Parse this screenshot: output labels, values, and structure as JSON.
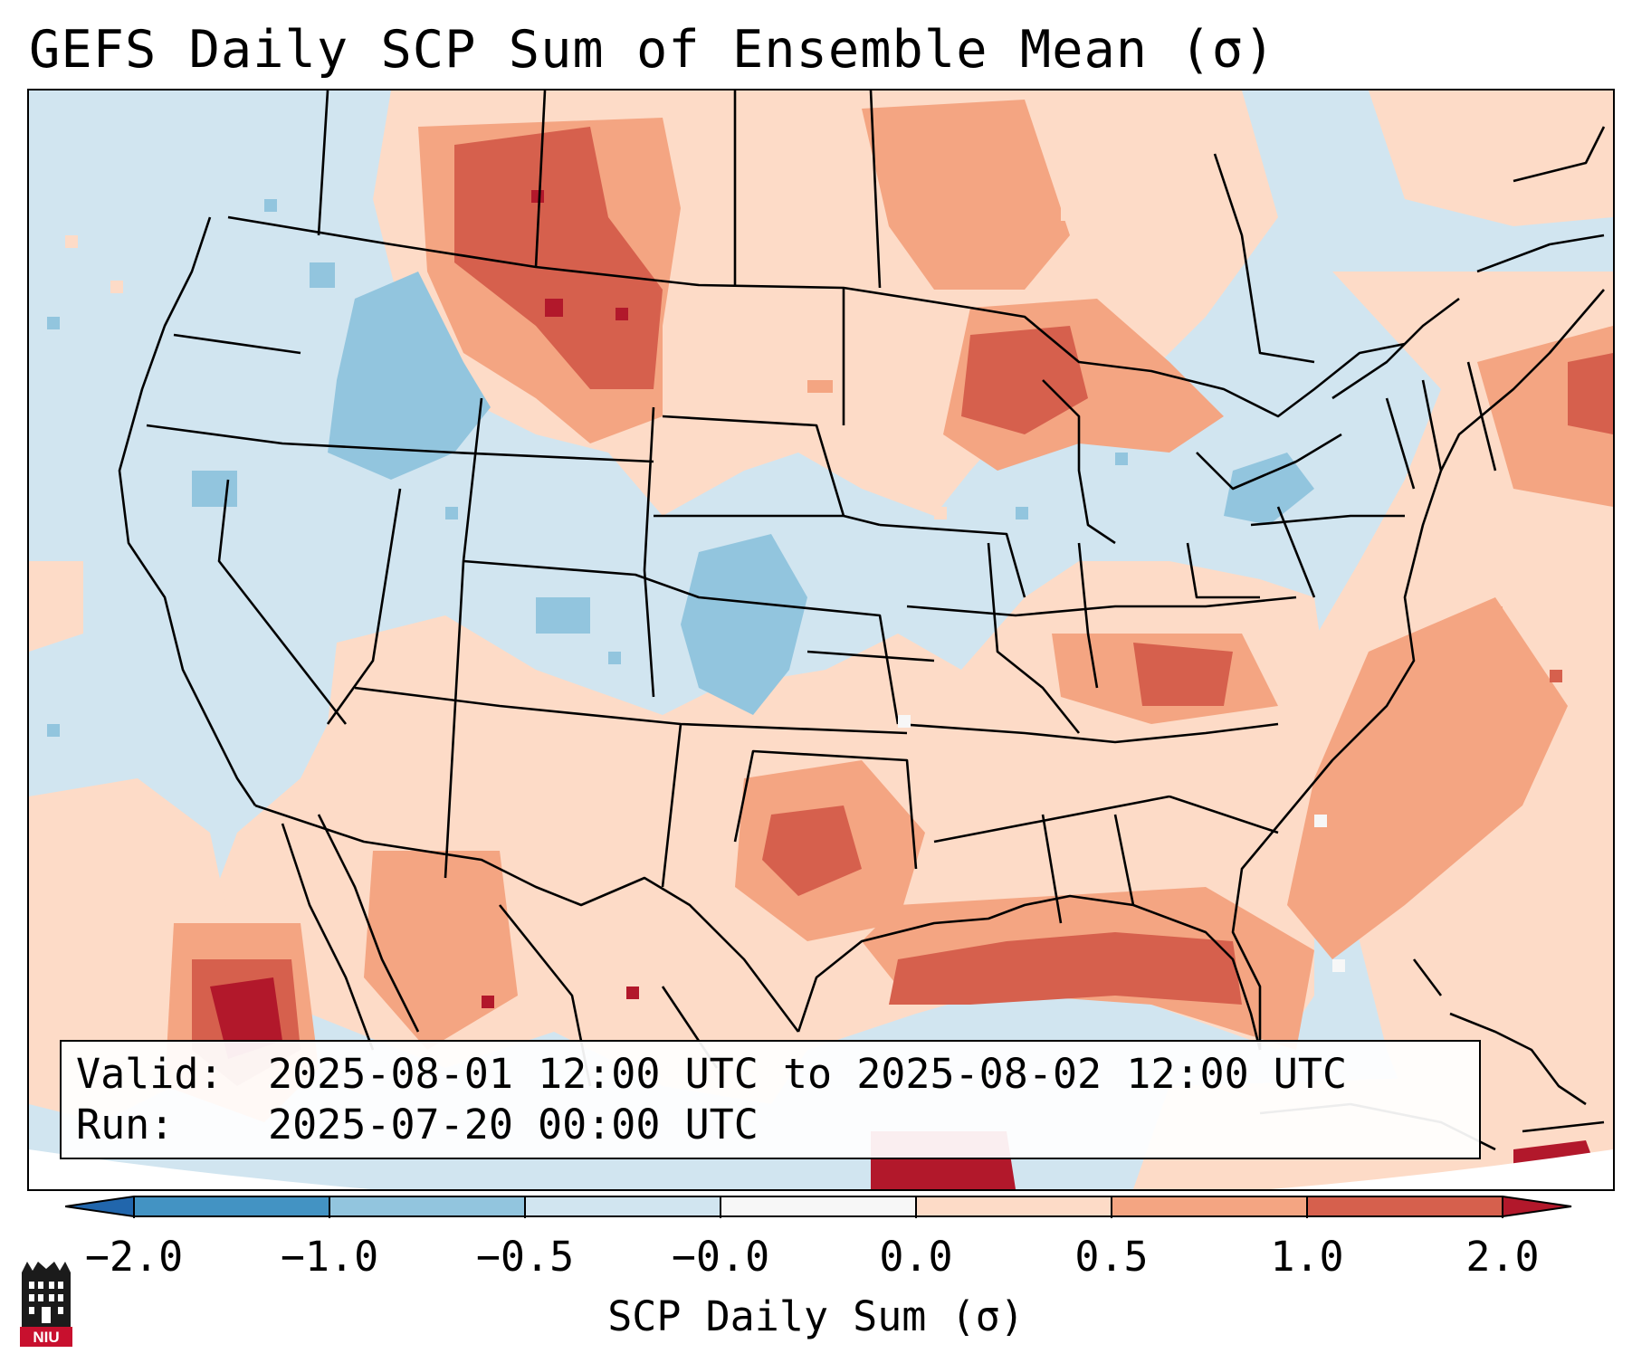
{
  "title": "GEFS Daily SCP Sum of Ensemble Mean (σ)",
  "info": {
    "valid_label": "Valid:",
    "valid_value": "2025-08-01 12:00 UTC to 2025-08-02 12:00 UTC",
    "run_label": "Run:",
    "run_value": "2025-07-20 00:00 UTC"
  },
  "colorbar": {
    "label": "SCP Daily Sum (σ)",
    "ticks": [
      "−2.0",
      "−1.0",
      "−0.5",
      "−0.0",
      "0.0",
      "0.5",
      "1.0",
      "2.0"
    ],
    "colors": {
      "under": "#2166ac",
      "c1": "#4393c3",
      "c2": "#92c5de",
      "c3": "#d1e5f0",
      "c4": "#f7f7f7",
      "c5": "#fddbc7",
      "c6": "#f4a582",
      "c7": "#d6604d",
      "over": "#b2182b"
    }
  },
  "logo": {
    "text": "NIU"
  },
  "map": {
    "projection": "Lambert conformal, contiguous United States",
    "field": "SCP daily sum anomaly (sigma)",
    "regions": [
      {
        "name": "northern-plains-montana",
        "category": "1.0"
      },
      {
        "name": "canadian-prairies",
        "category": "0.5"
      },
      {
        "name": "upper-midwest-wisconsin",
        "category": "1.0"
      },
      {
        "name": "central-plains-colorado-kansas",
        "category": "-1.0"
      },
      {
        "name": "idaho-oregon",
        "category": "-1.0"
      },
      {
        "name": "west-texas",
        "category": "0.5"
      },
      {
        "name": "gulf-coast",
        "category": "1.0"
      },
      {
        "name": "sonora-mexico",
        "category": "2.0"
      },
      {
        "name": "kentucky-west-virginia",
        "category": "1.0"
      },
      {
        "name": "atlantic-offshore",
        "category": "0.5"
      }
    ]
  }
}
